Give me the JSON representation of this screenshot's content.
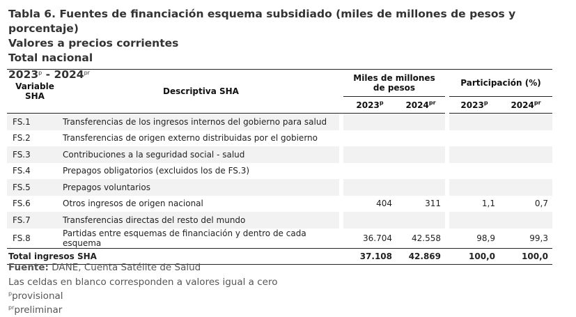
{
  "title": {
    "line1": "Tabla 6. Fuentes de financiación esquema subsidiado (miles de millones de pesos y porcentaje)",
    "line2": "Valores a precios corrientes",
    "line3": "Total nacional",
    "period_a": "2023",
    "period_a_sup": "p",
    "period_sep": " - ",
    "period_b": "2024",
    "period_b_sup": "pr"
  },
  "header": {
    "variable": "Variable SHA",
    "descriptiva": "Descriptiva SHA",
    "miles": "Miles de millones de pesos",
    "participacion": "Participación (%)",
    "y1": "2023",
    "y1_sup": "p",
    "y2": "2024",
    "y2_sup": "pr"
  },
  "rows": [
    {
      "code": "FS.1",
      "desc": "Transferencias de los ingresos internos del gobierno para salud",
      "m2023": "",
      "m2024": "",
      "p2023": "",
      "p2024": ""
    },
    {
      "code": "FS.2",
      "desc": "Transferencias de origen externo distribuidas por el gobierno",
      "m2023": "",
      "m2024": "",
      "p2023": "",
      "p2024": ""
    },
    {
      "code": "FS.3",
      "desc": "Contribuciones a la seguridad social - salud",
      "m2023": "",
      "m2024": "",
      "p2023": "",
      "p2024": ""
    },
    {
      "code": "FS.4",
      "desc": "Prepagos obligatorios (excluidos los de FS.3)",
      "m2023": "",
      "m2024": "",
      "p2023": "",
      "p2024": ""
    },
    {
      "code": "FS.5",
      "desc": "Prepagos voluntarios",
      "m2023": "",
      "m2024": "",
      "p2023": "",
      "p2024": ""
    },
    {
      "code": "FS.6",
      "desc": "Otros ingresos de origen nacional",
      "m2023": "404",
      "m2024": "311",
      "p2023": "1,1",
      "p2024": "0,7"
    },
    {
      "code": "FS.7",
      "desc": "Transferencias directas del resto del mundo",
      "m2023": "",
      "m2024": "",
      "p2023": "",
      "p2024": ""
    },
    {
      "code": "FS.8",
      "desc": "Partidas entre esquemas de financiación y dentro de cada esquema",
      "m2023": "36.704",
      "m2024": "42.558",
      "p2023": "98,9",
      "p2024": "99,3"
    }
  ],
  "total": {
    "label": "Total ingresos SHA",
    "m2023": "37.108",
    "m2024": "42.869",
    "p2023": "100,0",
    "p2024": "100,0"
  },
  "footer": {
    "fuente_label": "Fuente:",
    "fuente": " DANE, Cuenta Satélite de Salud",
    "note": "Las celdas en blanco corresponden a valores igual a cero",
    "p_sup": "p",
    "p_text": "provisional",
    "pr_sup": "pr",
    "pr_text": "preliminar"
  }
}
